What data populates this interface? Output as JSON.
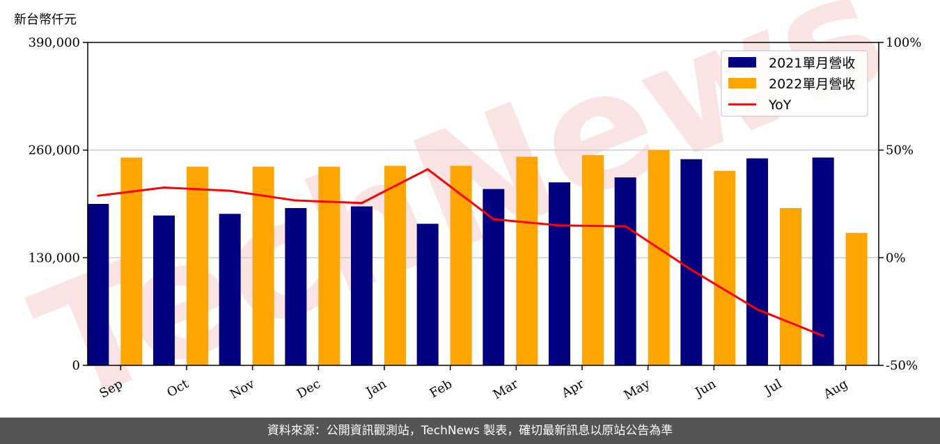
{
  "unit_label": "新台幣仟元",
  "watermark": "TechNews",
  "footer": {
    "text": "資料來源：公開資訊觀測站，TechNews 製表，確切最新訊息以原站公告為準"
  },
  "colors": {
    "bar_2021": "#000080",
    "bar_2022": "#FFA500",
    "yoy_line": "#FF0000",
    "grid": "#CCCCCC",
    "footer_bg": "#555555",
    "watermark": "#F4CCCC"
  },
  "chart_data": {
    "type": "bar",
    "categories": [
      "Sep",
      "Oct",
      "Nov",
      "Dec",
      "Jan",
      "Feb",
      "Mar",
      "Apr",
      "May",
      "Jun",
      "Jul",
      "Aug"
    ],
    "series": [
      {
        "name": "2021單月營收",
        "type": "bar",
        "axis": "left",
        "color": "#000080",
        "values": [
          195000,
          181000,
          183000,
          190000,
          192000,
          171000,
          213000,
          221000,
          227000,
          249000,
          250000,
          251000
        ]
      },
      {
        "name": "2022單月營收",
        "type": "bar",
        "axis": "left",
        "color": "#FFA500",
        "values": [
          251000,
          240000,
          240000,
          240000,
          241000,
          241000,
          252000,
          254000,
          260000,
          235000,
          190000,
          160000
        ]
      },
      {
        "name": "YoY",
        "type": "line",
        "axis": "right",
        "color": "#FF0000",
        "values": [
          28.8,
          32.6,
          31.1,
          26.6,
          25.4,
          41.1,
          17.9,
          15.0,
          14.6,
          -5.6,
          -24.0,
          -36.3
        ]
      }
    ],
    "y_left": {
      "ticks": [
        "0",
        "130,000",
        "260,000",
        "390,000"
      ],
      "ylim": [
        0,
        390000
      ]
    },
    "y_right": {
      "ticks": [
        "-50%",
        "0%",
        "50%",
        "100%"
      ],
      "ylim": [
        -50,
        100
      ]
    },
    "grid": "horizontal",
    "legend_position": "top-right"
  }
}
